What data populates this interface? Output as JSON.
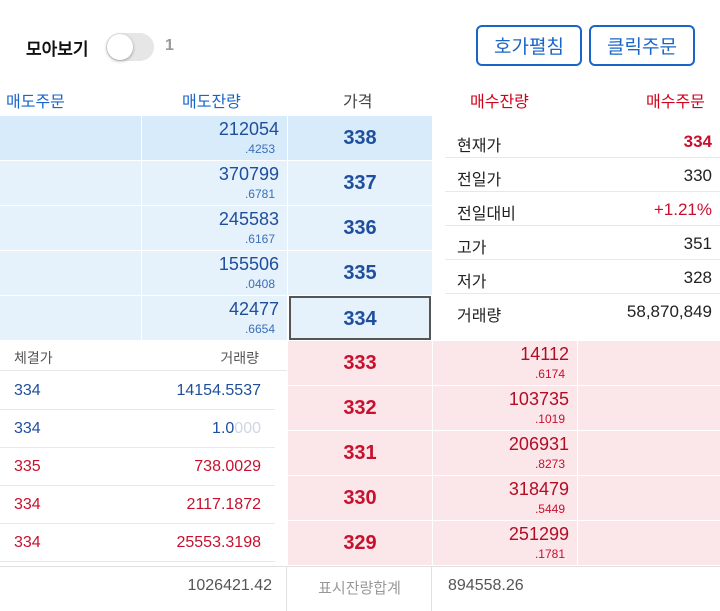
{
  "topbar": {
    "collect_label": "모아보기",
    "collect_count": "1",
    "hoga_button": "호가펼침",
    "click_order_button": "클릭주문"
  },
  "headers": {
    "sell_order": "매도주문",
    "sell_qty": "매도잔량",
    "price": "가격",
    "buy_qty": "매수잔량",
    "buy_order": "매수주문"
  },
  "asks": [
    {
      "qty": "212054",
      "qty_dec": ".4253",
      "price": "338"
    },
    {
      "qty": "370799",
      "qty_dec": ".6781",
      "price": "337"
    },
    {
      "qty": "245583",
      "qty_dec": ".6167",
      "price": "336"
    },
    {
      "qty": "155506",
      "qty_dec": ".0408",
      "price": "335"
    },
    {
      "qty": "42477",
      "qty_dec": ".6654",
      "price": "334"
    }
  ],
  "bids": [
    {
      "qty": "14112",
      "qty_dec": ".6174",
      "price": "333"
    },
    {
      "qty": "103735",
      "qty_dec": ".1019",
      "price": "332"
    },
    {
      "qty": "206931",
      "qty_dec": ".8273",
      "price": "331"
    },
    {
      "qty": "318479",
      "qty_dec": ".5449",
      "price": "330"
    },
    {
      "qty": "251299",
      "qty_dec": ".1781",
      "price": "329"
    }
  ],
  "info": [
    {
      "label": "현재가",
      "value": "334"
    },
    {
      "label": "전일가",
      "value": "330"
    },
    {
      "label": "전일대비",
      "value": "+1.21%"
    },
    {
      "label": "고가",
      "value": "351"
    },
    {
      "label": "저가",
      "value": "328"
    },
    {
      "label": "거래량",
      "value": "58,870,849"
    }
  ],
  "trades": {
    "header_price": "체결가",
    "header_volume": "거래량",
    "rows": [
      {
        "price": "334",
        "volume": "14154.5537",
        "volume_faded": "",
        "color": "#1f4e9c"
      },
      {
        "price": "334",
        "volume": "1.0",
        "volume_faded": "000",
        "color": "#1f4e9c"
      },
      {
        "price": "335",
        "volume": "738.0029",
        "volume_faded": "",
        "color": "#c8102e"
      },
      {
        "price": "334",
        "volume": "2117.1872",
        "volume_faded": "",
        "color": "#c8102e"
      },
      {
        "price": "334",
        "volume": "25553.3198",
        "volume_faded": "",
        "color": "#c8102e"
      }
    ]
  },
  "footer": {
    "sell_total": "1026421.42",
    "label": "표시잔량합계",
    "buy_total": "894558.26"
  },
  "colors": {
    "ask_blue": "#1f4e9c",
    "bid_red": "#c8102e",
    "ask_bg": "#e5f1fb",
    "bid_bg": "#fbe6ea",
    "accent": "#1a66c8"
  }
}
